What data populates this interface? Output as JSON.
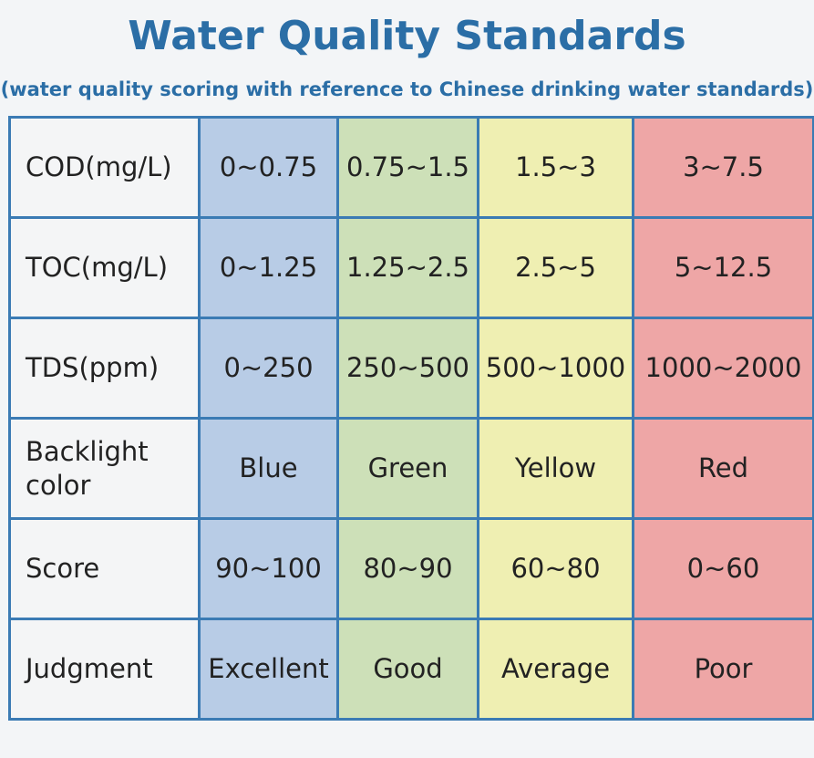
{
  "header": {
    "title": "Water Quality Standards",
    "subtitle": "(water quality scoring with reference to Chinese drinking water standards)"
  },
  "table": {
    "rows": [
      [
        "COD(mg/L)",
        "0~0.75",
        "0.75~1.5",
        "1.5~3",
        "3~7.5"
      ],
      [
        "TOC(mg/L)",
        "0~1.25",
        "1.25~2.5",
        "2.5~5",
        "5~12.5"
      ],
      [
        "TDS(ppm)",
        "0~250",
        "250~500",
        "500~1000",
        "1000~2000"
      ],
      [
        "Backlight color",
        "Blue",
        "Green",
        "Yellow",
        "Red"
      ],
      [
        "Score",
        "90~100",
        "80~90",
        "60~80",
        "0~60"
      ],
      [
        "Judgment",
        "Excellent",
        "Good",
        "Average",
        "Poor"
      ]
    ]
  }
}
